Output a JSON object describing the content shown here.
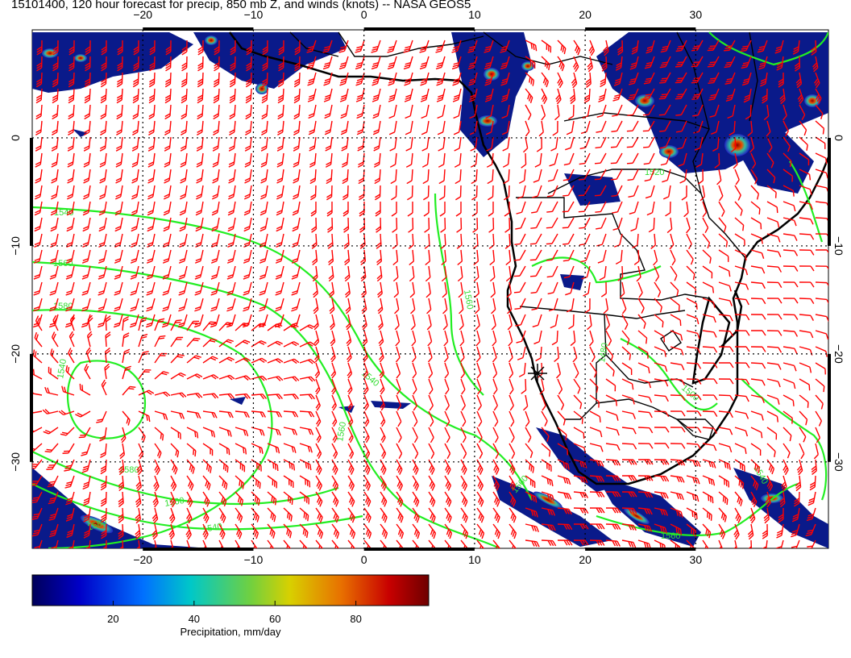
{
  "title": "15101400, 120 hour forecast for precip, 850 mb Z, and winds (knots) -- NASA GEOS5",
  "map": {
    "lon_range": [
      -30,
      42
    ],
    "lat_range": [
      -38,
      10
    ],
    "x_ticks": [
      {
        "value": -20,
        "label": "−20"
      },
      {
        "value": -10,
        "label": "−10"
      },
      {
        "value": 0,
        "label": "0"
      },
      {
        "value": 10,
        "label": "10"
      },
      {
        "value": 20,
        "label": "20"
      },
      {
        "value": 30,
        "label": "30"
      }
    ],
    "y_ticks": [
      {
        "value": 0,
        "label": "0"
      },
      {
        "value": -10,
        "label": "−10"
      },
      {
        "value": -20,
        "label": "−20"
      },
      {
        "value": -30,
        "label": "−30"
      }
    ],
    "grid": true,
    "contour_labels": [
      "1540",
      "1560",
      "1580",
      "1520",
      "1500",
      "1480"
    ]
  },
  "colorbar": {
    "ticks": [
      {
        "value": 20,
        "label": "20"
      },
      {
        "value": 40,
        "label": "40"
      },
      {
        "value": 60,
        "label": "60"
      },
      {
        "value": 80,
        "label": "80"
      }
    ],
    "range": [
      0,
      98
    ],
    "label": "Precipitation, mm/day"
  },
  "colors": {
    "wind_barbs": "#ff0000",
    "contours": "#22ee22",
    "coast": "#000000",
    "precip_low": "#00008b",
    "precip_high": "#7a0000"
  }
}
